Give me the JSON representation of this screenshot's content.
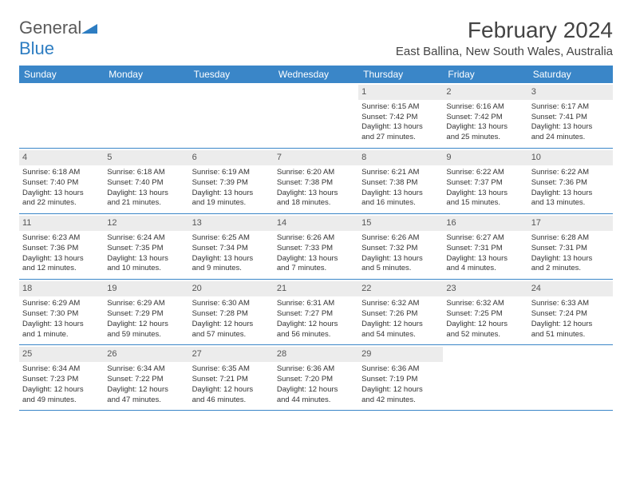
{
  "brand": {
    "general": "General",
    "blue": "Blue"
  },
  "title": "February 2024",
  "location": "East Ballina, New South Wales, Australia",
  "colors": {
    "header_bg": "#3a86c8",
    "daynum_bg": "#ececec",
    "divider": "#3a86c8",
    "text": "#333333"
  },
  "day_names": [
    "Sunday",
    "Monday",
    "Tuesday",
    "Wednesday",
    "Thursday",
    "Friday",
    "Saturday"
  ],
  "weeks": [
    [
      {
        "num": "",
        "lines": []
      },
      {
        "num": "",
        "lines": []
      },
      {
        "num": "",
        "lines": []
      },
      {
        "num": "",
        "lines": []
      },
      {
        "num": "1",
        "lines": [
          "Sunrise: 6:15 AM",
          "Sunset: 7:42 PM",
          "Daylight: 13 hours",
          "and 27 minutes."
        ]
      },
      {
        "num": "2",
        "lines": [
          "Sunrise: 6:16 AM",
          "Sunset: 7:42 PM",
          "Daylight: 13 hours",
          "and 25 minutes."
        ]
      },
      {
        "num": "3",
        "lines": [
          "Sunrise: 6:17 AM",
          "Sunset: 7:41 PM",
          "Daylight: 13 hours",
          "and 24 minutes."
        ]
      }
    ],
    [
      {
        "num": "4",
        "lines": [
          "Sunrise: 6:18 AM",
          "Sunset: 7:40 PM",
          "Daylight: 13 hours",
          "and 22 minutes."
        ]
      },
      {
        "num": "5",
        "lines": [
          "Sunrise: 6:18 AM",
          "Sunset: 7:40 PM",
          "Daylight: 13 hours",
          "and 21 minutes."
        ]
      },
      {
        "num": "6",
        "lines": [
          "Sunrise: 6:19 AM",
          "Sunset: 7:39 PM",
          "Daylight: 13 hours",
          "and 19 minutes."
        ]
      },
      {
        "num": "7",
        "lines": [
          "Sunrise: 6:20 AM",
          "Sunset: 7:38 PM",
          "Daylight: 13 hours",
          "and 18 minutes."
        ]
      },
      {
        "num": "8",
        "lines": [
          "Sunrise: 6:21 AM",
          "Sunset: 7:38 PM",
          "Daylight: 13 hours",
          "and 16 minutes."
        ]
      },
      {
        "num": "9",
        "lines": [
          "Sunrise: 6:22 AM",
          "Sunset: 7:37 PM",
          "Daylight: 13 hours",
          "and 15 minutes."
        ]
      },
      {
        "num": "10",
        "lines": [
          "Sunrise: 6:22 AM",
          "Sunset: 7:36 PM",
          "Daylight: 13 hours",
          "and 13 minutes."
        ]
      }
    ],
    [
      {
        "num": "11",
        "lines": [
          "Sunrise: 6:23 AM",
          "Sunset: 7:36 PM",
          "Daylight: 13 hours",
          "and 12 minutes."
        ]
      },
      {
        "num": "12",
        "lines": [
          "Sunrise: 6:24 AM",
          "Sunset: 7:35 PM",
          "Daylight: 13 hours",
          "and 10 minutes."
        ]
      },
      {
        "num": "13",
        "lines": [
          "Sunrise: 6:25 AM",
          "Sunset: 7:34 PM",
          "Daylight: 13 hours",
          "and 9 minutes."
        ]
      },
      {
        "num": "14",
        "lines": [
          "Sunrise: 6:26 AM",
          "Sunset: 7:33 PM",
          "Daylight: 13 hours",
          "and 7 minutes."
        ]
      },
      {
        "num": "15",
        "lines": [
          "Sunrise: 6:26 AM",
          "Sunset: 7:32 PM",
          "Daylight: 13 hours",
          "and 5 minutes."
        ]
      },
      {
        "num": "16",
        "lines": [
          "Sunrise: 6:27 AM",
          "Sunset: 7:31 PM",
          "Daylight: 13 hours",
          "and 4 minutes."
        ]
      },
      {
        "num": "17",
        "lines": [
          "Sunrise: 6:28 AM",
          "Sunset: 7:31 PM",
          "Daylight: 13 hours",
          "and 2 minutes."
        ]
      }
    ],
    [
      {
        "num": "18",
        "lines": [
          "Sunrise: 6:29 AM",
          "Sunset: 7:30 PM",
          "Daylight: 13 hours",
          "and 1 minute."
        ]
      },
      {
        "num": "19",
        "lines": [
          "Sunrise: 6:29 AM",
          "Sunset: 7:29 PM",
          "Daylight: 12 hours",
          "and 59 minutes."
        ]
      },
      {
        "num": "20",
        "lines": [
          "Sunrise: 6:30 AM",
          "Sunset: 7:28 PM",
          "Daylight: 12 hours",
          "and 57 minutes."
        ]
      },
      {
        "num": "21",
        "lines": [
          "Sunrise: 6:31 AM",
          "Sunset: 7:27 PM",
          "Daylight: 12 hours",
          "and 56 minutes."
        ]
      },
      {
        "num": "22",
        "lines": [
          "Sunrise: 6:32 AM",
          "Sunset: 7:26 PM",
          "Daylight: 12 hours",
          "and 54 minutes."
        ]
      },
      {
        "num": "23",
        "lines": [
          "Sunrise: 6:32 AM",
          "Sunset: 7:25 PM",
          "Daylight: 12 hours",
          "and 52 minutes."
        ]
      },
      {
        "num": "24",
        "lines": [
          "Sunrise: 6:33 AM",
          "Sunset: 7:24 PM",
          "Daylight: 12 hours",
          "and 51 minutes."
        ]
      }
    ],
    [
      {
        "num": "25",
        "lines": [
          "Sunrise: 6:34 AM",
          "Sunset: 7:23 PM",
          "Daylight: 12 hours",
          "and 49 minutes."
        ]
      },
      {
        "num": "26",
        "lines": [
          "Sunrise: 6:34 AM",
          "Sunset: 7:22 PM",
          "Daylight: 12 hours",
          "and 47 minutes."
        ]
      },
      {
        "num": "27",
        "lines": [
          "Sunrise: 6:35 AM",
          "Sunset: 7:21 PM",
          "Daylight: 12 hours",
          "and 46 minutes."
        ]
      },
      {
        "num": "28",
        "lines": [
          "Sunrise: 6:36 AM",
          "Sunset: 7:20 PM",
          "Daylight: 12 hours",
          "and 44 minutes."
        ]
      },
      {
        "num": "29",
        "lines": [
          "Sunrise: 6:36 AM",
          "Sunset: 7:19 PM",
          "Daylight: 12 hours",
          "and 42 minutes."
        ]
      },
      {
        "num": "",
        "lines": []
      },
      {
        "num": "",
        "lines": []
      }
    ]
  ]
}
